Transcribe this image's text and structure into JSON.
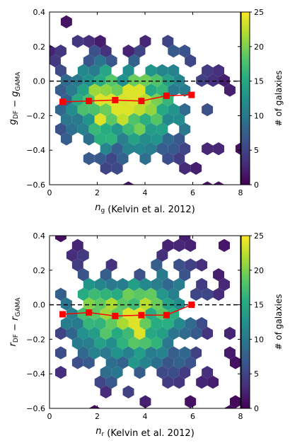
{
  "colorbar": {
    "label": "# of galaxies",
    "ticks": [
      "0",
      "5",
      "10",
      "15",
      "20",
      "25"
    ],
    "colors": [
      "#440154",
      "#472d7b",
      "#3b528b",
      "#2c728e",
      "#21918c",
      "#28ae80",
      "#5ec962",
      "#addc30",
      "#fde725"
    ]
  },
  "chart_data": [
    {
      "type": "heatmap",
      "subtype": "hexbin with binned median line",
      "xlabel": "n_g (Kelvin et al. 2012)",
      "ylabel": "g_DF − g_GAMA",
      "xlim": [
        0,
        8
      ],
      "ylim": [
        -0.6,
        0.4
      ],
      "xticks": [
        "0",
        "2",
        "4",
        "6",
        "8"
      ],
      "yticks": [
        "−0.6",
        "−0.4",
        "−0.2",
        "0.0",
        "0.2",
        "0.4"
      ],
      "reference_line": {
        "y": 0.0,
        "style": "dashed",
        "color": "#000000"
      },
      "median_line": {
        "color": "#ff0000",
        "x": [
          0.55,
          1.65,
          2.75,
          3.85,
          4.9,
          5.95
        ],
        "y": [
          -0.12,
          -0.115,
          -0.11,
          -0.115,
          -0.085,
          -0.08
        ]
      },
      "colorbar_range": [
        0,
        25
      ]
    },
    {
      "type": "heatmap",
      "subtype": "hexbin with binned median line",
      "xlabel": "n_r (Kelvin et al. 2012)",
      "ylabel": "r_DF − r_GAMA",
      "xlim": [
        0,
        8
      ],
      "ylim": [
        -0.6,
        0.4
      ],
      "xticks": [
        "0",
        "2",
        "4",
        "6",
        "8"
      ],
      "yticks": [
        "−0.6",
        "−0.4",
        "−0.2",
        "0.0",
        "0.2",
        "0.4"
      ],
      "reference_line": {
        "y": 0.0,
        "style": "dashed",
        "color": "#000000"
      },
      "median_line": {
        "color": "#ff0000",
        "x": [
          0.55,
          1.65,
          2.75,
          3.85,
          4.9,
          5.95
        ],
        "y": [
          -0.055,
          -0.045,
          -0.065,
          -0.06,
          -0.06,
          0.0
        ]
      },
      "colorbar_range": [
        0,
        25
      ]
    }
  ]
}
